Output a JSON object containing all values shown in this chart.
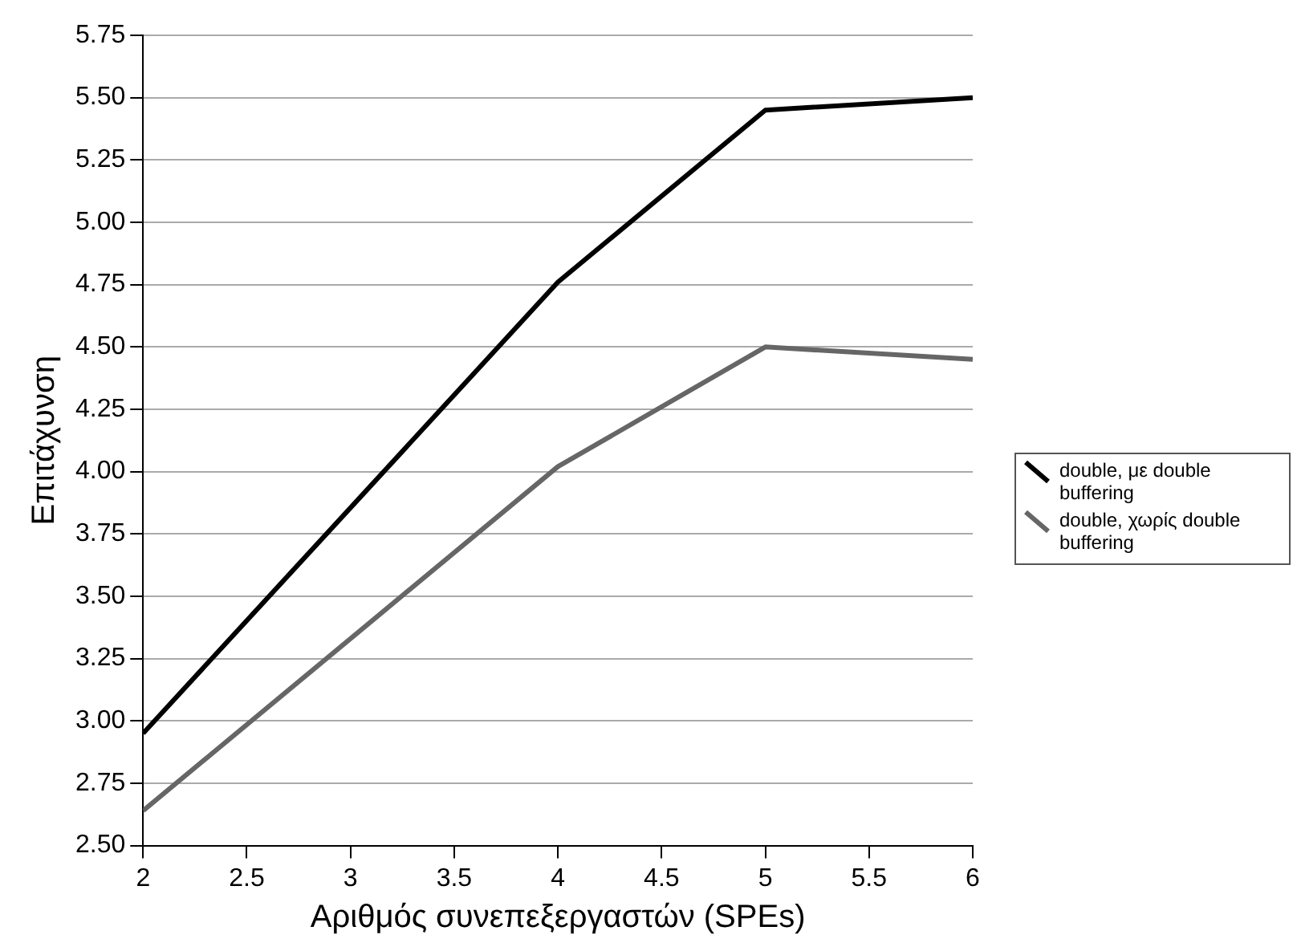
{
  "chart_data": {
    "type": "line",
    "xlabel": "Αριθμός συνεπεξεργαστών (SPEs)",
    "ylabel": "Επιτάχυνση",
    "x": [
      2,
      4,
      5,
      6
    ],
    "series": [
      {
        "name": "double, με double buffering",
        "color": "#000000",
        "values": [
          2.95,
          4.76,
          5.45,
          5.5
        ]
      },
      {
        "name": "double, χωρίς double buffering",
        "color": "#666666",
        "values": [
          2.64,
          4.02,
          4.5,
          4.45
        ]
      }
    ],
    "xlim": [
      2,
      6
    ],
    "xticks": [
      2,
      2.5,
      3,
      3.5,
      4,
      4.5,
      5,
      5.5,
      6
    ],
    "ylim": [
      2.5,
      5.75
    ],
    "yticks": [
      {
        "value": 2.5,
        "label": "2.50"
      },
      2.75,
      {
        "value": 3,
        "label": "3.00"
      },
      3.25,
      {
        "value": 3.5,
        "label": "3.50"
      },
      3.75,
      {
        "value": 4,
        "label": "4.00"
      },
      4.25,
      {
        "value": 4.5,
        "label": "4.50"
      },
      4.75,
      {
        "value": 5,
        "label": "5.00"
      },
      5.25,
      {
        "value": 5.5,
        "label": "5.50"
      },
      5.75
    ],
    "grid": "y",
    "legend": "right",
    "marker": "none",
    "line_style": "solid"
  }
}
